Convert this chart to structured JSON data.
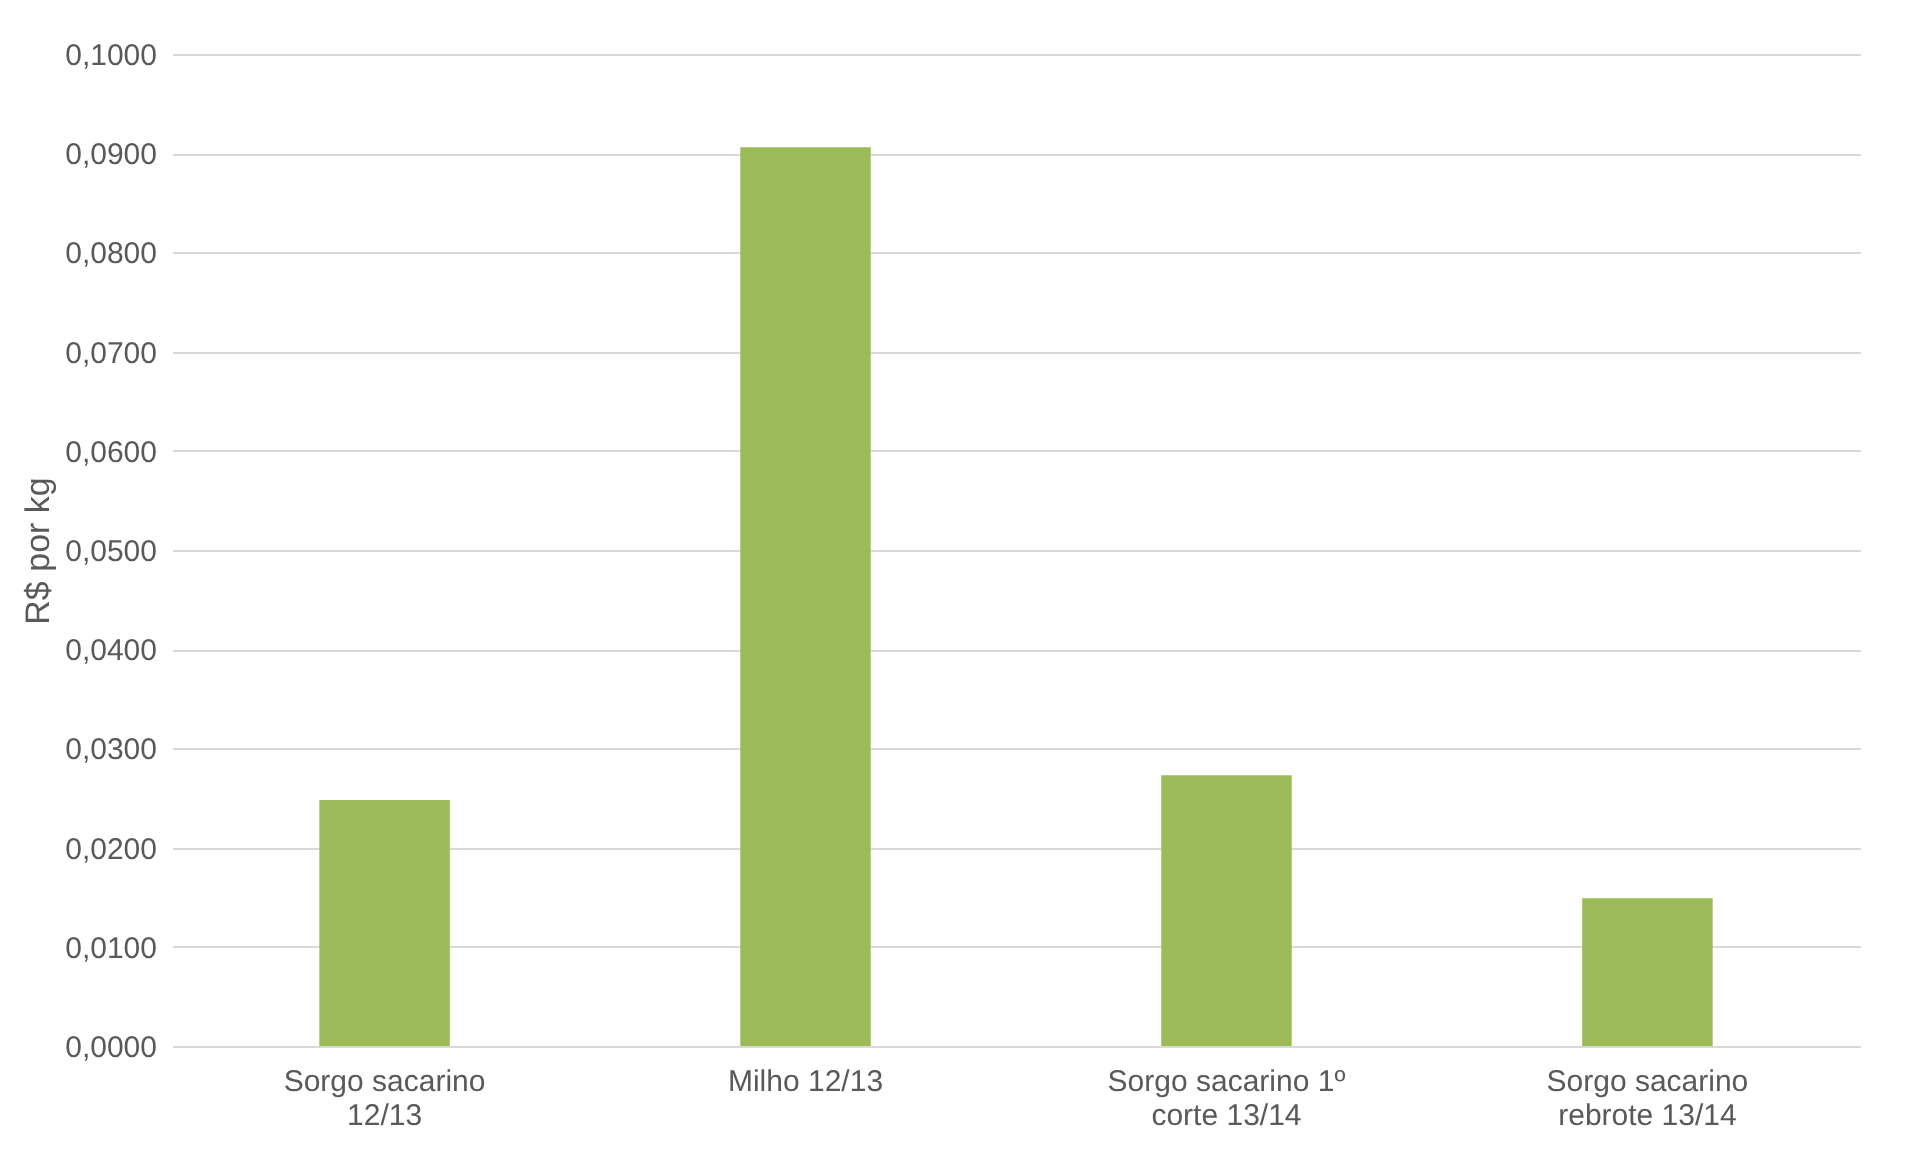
{
  "chart_data": {
    "type": "bar",
    "ylabel": "R$ por kg",
    "categories": [
      "Sorgo sacarino 12/13",
      "Milho 12/13",
      "Sorgo sacarino 1º corte 13/14",
      "Sorgo sacarino rebrote 13/14"
    ],
    "values": [
      0.0248,
      0.0906,
      0.0273,
      0.0149
    ],
    "color": "#9bbb59",
    "ylim": [
      0,
      0.1
    ],
    "yticks": [
      {
        "value": 0,
        "label": "0,0000"
      },
      {
        "value": 0.01,
        "label": "0,0100"
      },
      {
        "value": 0.02,
        "label": "0,0200"
      },
      {
        "value": 0.03,
        "label": "0,0300"
      },
      {
        "value": 0.04,
        "label": "0,0400"
      },
      {
        "value": 0.05,
        "label": "0,0500"
      },
      {
        "value": 0.06,
        "label": "0,0600"
      },
      {
        "value": 0.07,
        "label": "0,0700"
      },
      {
        "value": 0.08,
        "label": "0,0800"
      },
      {
        "value": 0.09,
        "label": "0,0900"
      },
      {
        "value": 0.1,
        "label": "0,1000"
      }
    ],
    "grid": "y"
  }
}
